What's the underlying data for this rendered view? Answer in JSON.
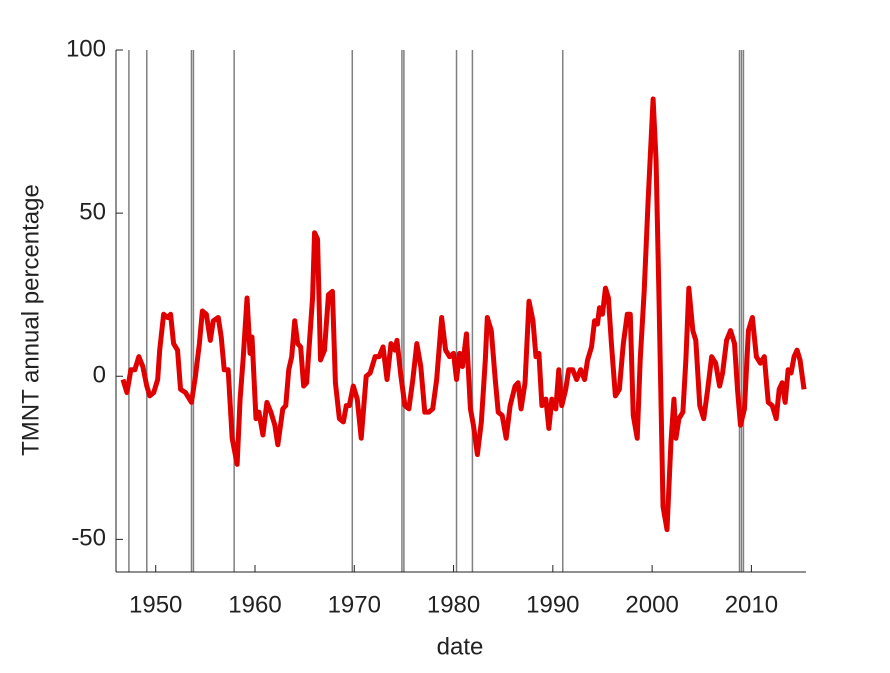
{
  "chart_data": {
    "type": "line",
    "xlabel": "date",
    "ylabel": "TMNT annual percentage",
    "xlim": [
      1946,
      2015.5
    ],
    "xticks": [
      1950,
      1960,
      1970,
      1980,
      1990,
      2000,
      2010
    ],
    "ylim": [
      -60,
      100
    ],
    "yticks": [
      -50,
      0,
      50,
      100
    ],
    "vlines": {
      "color": "#808080",
      "x": [
        1947.3,
        1949.1,
        1953.6,
        1953.8,
        1957.9,
        1969.8,
        1974.8,
        1975.0,
        1980.3,
        1981.9,
        1991.0,
        2008.8,
        2009.0,
        2009.2
      ]
    },
    "series": [
      {
        "color": "#e00000",
        "x": [
          1946.7,
          1947.1,
          1947.5,
          1947.9,
          1948.3,
          1948.7,
          1949.1,
          1949.4,
          1949.8,
          1950.2,
          1950.4,
          1950.8,
          1951.2,
          1951.5,
          1951.8,
          1952.2,
          1952.5,
          1953.0,
          1953.6,
          1954.0,
          1954.4,
          1954.7,
          1955.1,
          1955.5,
          1955.8,
          1956.3,
          1956.6,
          1956.9,
          1957.3,
          1957.7,
          1958.2,
          1958.5,
          1958.8,
          1959.2,
          1959.5,
          1959.7,
          1960.1,
          1960.4,
          1960.8,
          1961.2,
          1961.6,
          1962.0,
          1962.3,
          1962.8,
          1963.1,
          1963.4,
          1963.7,
          1964.0,
          1964.3,
          1964.6,
          1964.9,
          1965.2,
          1965.5,
          1965.8,
          1966.0,
          1966.3,
          1966.6,
          1967.0,
          1967.4,
          1967.8,
          1968.1,
          1968.5,
          1968.9,
          1969.2,
          1969.5,
          1969.9,
          1970.3,
          1970.7,
          1971.2,
          1971.6,
          1972.1,
          1972.5,
          1972.9,
          1973.3,
          1973.7,
          1974.1,
          1974.3,
          1974.7,
          1975.1,
          1975.5,
          1975.9,
          1976.3,
          1976.7,
          1977.1,
          1977.5,
          1977.9,
          1978.3,
          1978.8,
          1979.2,
          1979.6,
          1980.0,
          1980.3,
          1980.6,
          1980.9,
          1981.3,
          1981.7,
          1982.0,
          1982.4,
          1982.8,
          1983.2,
          1983.4,
          1983.8,
          1984.2,
          1984.5,
          1984.9,
          1985.3,
          1985.7,
          1986.2,
          1986.5,
          1986.8,
          1987.2,
          1987.6,
          1988.0,
          1988.3,
          1988.6,
          1988.9,
          1989.3,
          1989.6,
          1989.9,
          1990.3,
          1990.6,
          1990.9,
          1991.3,
          1991.6,
          1992.0,
          1992.4,
          1992.8,
          1993.2,
          1993.5,
          1993.9,
          1994.2,
          1994.5,
          1994.7,
          1995.0,
          1995.3,
          1995.6,
          1995.9,
          1996.3,
          1996.7,
          1997.1,
          1997.5,
          1997.8,
          1998.1,
          1998.5,
          1998.8,
          1999.2,
          1999.6,
          2000.1,
          2000.4,
          2000.7,
          2001.1,
          2001.5,
          2001.9,
          2002.2,
          2002.4,
          2002.7,
          2003.1,
          2003.4,
          2003.7,
          2004.1,
          2004.4,
          2004.8,
          2005.2,
          2005.6,
          2006.0,
          2006.4,
          2006.8,
          2007.1,
          2007.5,
          2007.9,
          2008.3,
          2008.6,
          2008.9,
          2009.3,
          2009.7,
          2010.1,
          2010.5,
          2010.9,
          2011.3,
          2011.7,
          2012.1,
          2012.5,
          2012.8,
          2013.1,
          2013.4,
          2013.7,
          2014.0,
          2014.3,
          2014.6,
          2014.9,
          2015.3
        ],
        "values": [
          -1,
          -5,
          2,
          2,
          6,
          3,
          -3,
          -6,
          -5,
          -1,
          8,
          19,
          18,
          19,
          10,
          8,
          -4,
          -5,
          -8,
          0,
          10,
          20,
          19,
          11,
          17,
          18,
          12,
          2,
          2,
          -19,
          -27,
          -7,
          5,
          24,
          7,
          12,
          -13,
          -11,
          -18,
          -8,
          -11,
          -15,
          -21,
          -10,
          -9,
          2,
          6,
          17,
          10,
          9,
          -3,
          -2,
          11,
          24,
          44,
          42,
          5,
          8,
          25,
          26,
          -2,
          -13,
          -14,
          -9,
          -9,
          -3,
          -7,
          -19,
          0,
          1,
          6,
          6,
          9,
          -1,
          10,
          8,
          11,
          0,
          -9,
          -10,
          -1,
          10,
          3,
          -11,
          -11,
          -10,
          -1,
          18,
          8,
          6,
          7,
          -1,
          7,
          3,
          13,
          -10,
          -15,
          -24,
          -14,
          5,
          18,
          14,
          -1,
          -11,
          -12,
          -19,
          -9,
          -3,
          -2,
          -10,
          -2,
          23,
          17,
          6,
          7,
          -9,
          -7,
          -16,
          -7,
          -10,
          2,
          -9,
          -4,
          2,
          2,
          -1,
          2,
          -1,
          5,
          9,
          17,
          16,
          21,
          19,
          27,
          24,
          10,
          -6,
          -4,
          10,
          19,
          19,
          -12,
          -19,
          5,
          26,
          54,
          85,
          66,
          23,
          -40,
          -47,
          -20,
          -7,
          -19,
          -13,
          -11,
          5,
          27,
          14,
          11,
          -9,
          -13,
          -4,
          6,
          4,
          -3,
          1,
          11,
          14,
          10,
          -4,
          -15,
          -10,
          14,
          18,
          6,
          4,
          6,
          -8,
          -9,
          -13,
          -4,
          -2,
          -8,
          2,
          1,
          6,
          8,
          5,
          -4
        ]
      }
    ]
  }
}
